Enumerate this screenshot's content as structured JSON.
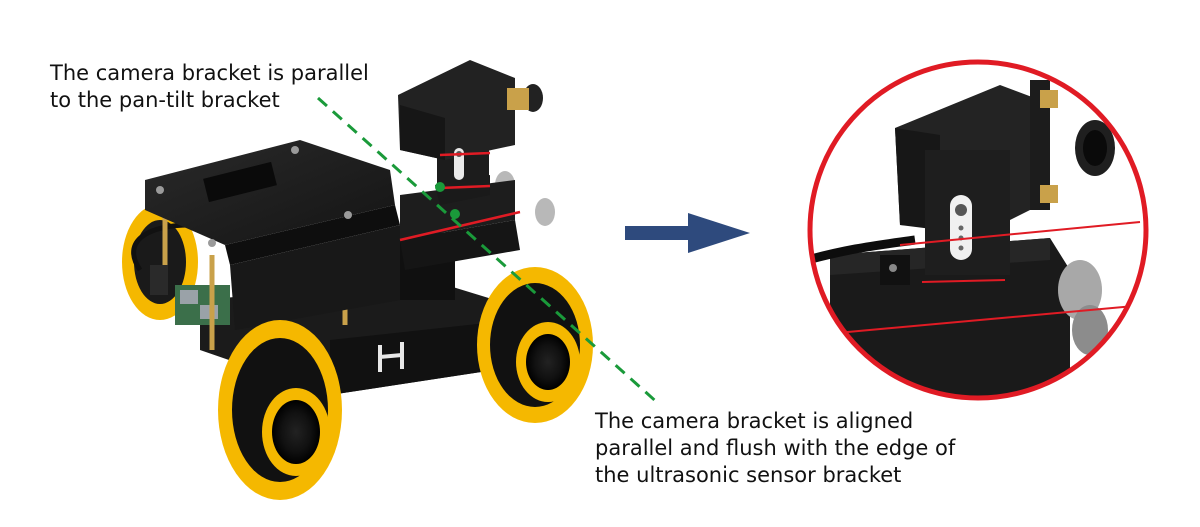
{
  "captions": {
    "top": [
      "The camera bracket is parallel",
      "to the pan-tilt bracket"
    ],
    "bottom": [
      "The camera bracket is aligned",
      "parallel and flush with the edge of",
      "the ultrasonic sensor bracket"
    ]
  },
  "colors": {
    "guide_line": "#1a9a3a",
    "marker_line": "#e01b24",
    "arrow": "#2e4a7d",
    "zoom_ring": "#e01b24",
    "wheel": "#f5b800",
    "chassis": "#1c1c1c"
  },
  "icons": {
    "arrow": "right-arrow-icon",
    "logo": "h-logo-icon"
  }
}
